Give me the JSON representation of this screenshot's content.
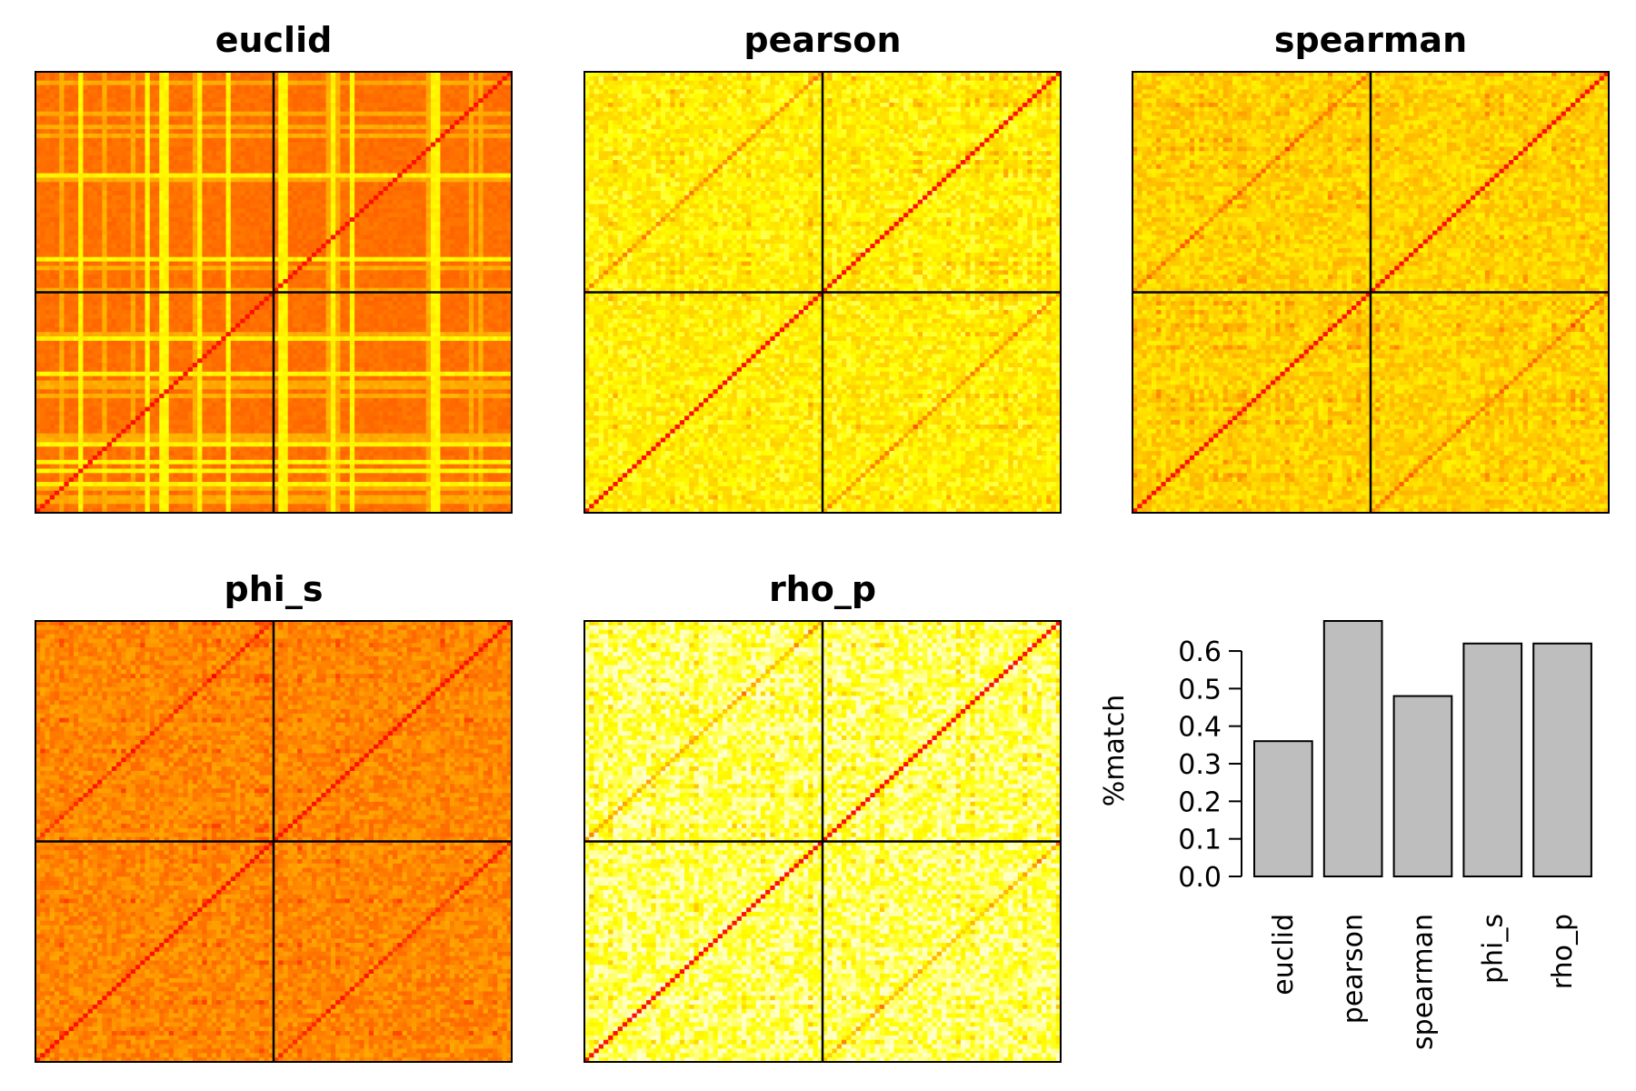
{
  "colors": {
    "heat_low": "#ff0000",
    "heat_mid": "#ff8c00",
    "heat_high": "#ffff00",
    "heat_top": "#ffffe0",
    "bar_fill": "#bebebe",
    "frame": "#000000"
  },
  "chart_data": [
    {
      "type": "heatmap",
      "title": "euclid",
      "matrix_size": 100,
      "block_split": 50,
      "diagonal": "red",
      "dominant_color": "orange",
      "pattern": "banded"
    },
    {
      "type": "heatmap",
      "title": "pearson",
      "matrix_size": 100,
      "block_split": 50,
      "diagonal": "red",
      "dominant_color": "yellow",
      "pattern": "off-diagonal"
    },
    {
      "type": "heatmap",
      "title": "spearman",
      "matrix_size": 100,
      "block_split": 50,
      "diagonal": "red",
      "dominant_color": "yellow-orange",
      "pattern": "off-diagonal"
    },
    {
      "type": "heatmap",
      "title": "phi_s",
      "matrix_size": 100,
      "block_split": 50,
      "diagonal": "red",
      "dominant_color": "orange",
      "pattern": "off-diagonal"
    },
    {
      "type": "heatmap",
      "title": "rho_p",
      "matrix_size": 100,
      "block_split": 50,
      "diagonal": "red",
      "dominant_color": "pale-yellow",
      "pattern": "off-diagonal"
    },
    {
      "type": "bar",
      "title": "",
      "categories": [
        "euclid",
        "pearson",
        "spearman",
        "phi_s",
        "rho_p"
      ],
      "values": [
        0.36,
        0.68,
        0.48,
        0.62,
        0.62
      ],
      "ylabel": "%match",
      "xlabel": "",
      "ylim": [
        0,
        0.68
      ],
      "yticks": [
        "0.0",
        "0.1",
        "0.2",
        "0.3",
        "0.4",
        "0.5",
        "0.6"
      ],
      "grid": false
    }
  ]
}
